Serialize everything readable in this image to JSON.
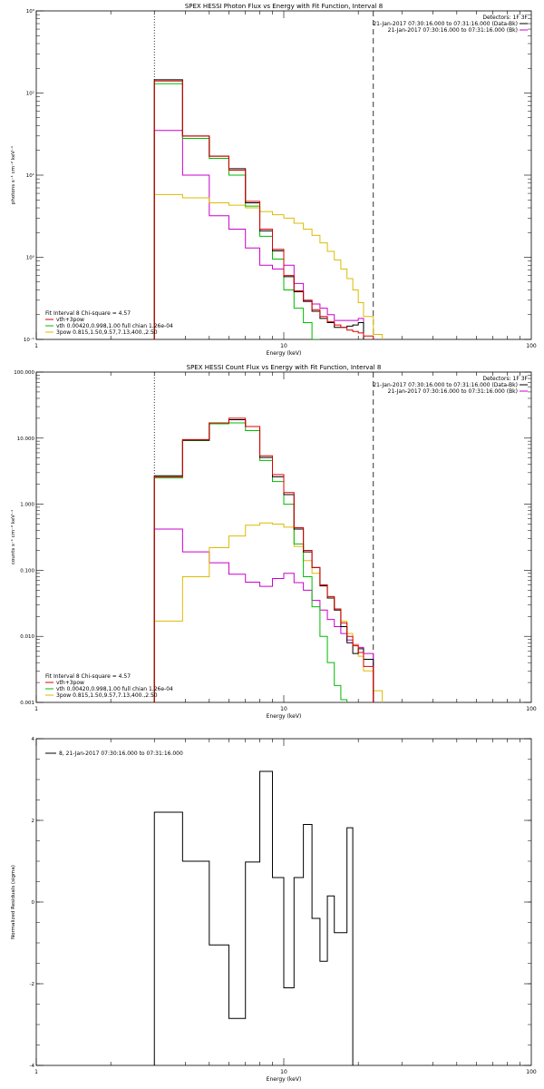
{
  "chart_data": [
    {
      "id": "photon",
      "type": "line",
      "style": "histogram",
      "title": "SPEX HESSI Photon Flux vs Energy with Fit Function, Interval 8",
      "xlabel": "Energy (keV)",
      "ylabel": "photons s⁻¹ cm⁻² keV⁻¹",
      "xscale": "log",
      "yscale": "log",
      "xlim": [
        1,
        100
      ],
      "ylim": [
        0.1,
        1000
      ],
      "x_ticks": [
        {
          "v": 1,
          "label": "1"
        },
        {
          "v": 10,
          "label": "10"
        },
        {
          "v": 100,
          "label": "100"
        }
      ],
      "y_ticks": [
        {
          "v": 0.1,
          "label": "10⁻¹"
        },
        {
          "v": 1,
          "label": "10⁰"
        },
        {
          "v": 10,
          "label": "10¹"
        },
        {
          "v": 100,
          "label": "10²"
        },
        {
          "v": 1000,
          "label": "10³"
        }
      ],
      "y_minor": true,
      "vlines": [
        {
          "x": 3.0,
          "style": "dotted"
        },
        {
          "x": 23.0,
          "style": "dashed"
        }
      ],
      "legend_top_right": {
        "header": "Detectors: 1F 3F",
        "items": [
          {
            "text": "21-Jan-2017 07:30:16.000 to 07:31:16.000 (Data-Bk)",
            "color": "#000000"
          },
          {
            "text": "21-Jan-2017 07:30:16.000 to 07:31:16.000 (Bk)",
            "color": "#cc00cc"
          }
        ]
      },
      "legend_bottom_left": {
        "header": "Fit Interval 8   Chi-square = 4.57",
        "items": [
          {
            "text": "vth+3pow",
            "color": "#dd0000"
          },
          {
            "text": "vth 0.00420,0.998,1.00  full chian 1.26e-04",
            "color": "#00bb00"
          },
          {
            "text": "3pow 0.815,1.50,9.57,7.13,400.,2.50",
            "color": "#ddbb00"
          }
        ]
      },
      "edges": [
        3.0,
        3.9,
        5.0,
        6.0,
        7.0,
        8.0,
        9.0,
        10.0,
        11.0,
        12.0,
        13.0,
        14.0,
        15.0,
        16.0,
        17.0,
        18.0,
        19.0,
        20.0,
        21.0,
        23.0,
        25.0
      ],
      "series": [
        {
          "key": "data",
          "color": "#000000",
          "values": [
            145,
            30,
            17,
            12,
            4.6,
            2.1,
            1.2,
            0.58,
            0.38,
            0.29,
            0.22,
            0.18,
            0.16,
            0.14,
            0.14,
            0.145,
            0.15,
            0.16
          ]
        },
        {
          "key": "fit",
          "color": "#dd0000",
          "values": [
            140,
            30,
            17,
            11.5,
            4.8,
            2.2,
            1.25,
            0.6,
            0.39,
            0.3,
            0.23,
            0.19,
            0.165,
            0.15,
            0.14,
            0.13,
            0.125,
            0.12,
            0.11
          ]
        },
        {
          "key": "vth",
          "color": "#00bb00",
          "values": [
            130,
            28,
            16,
            10,
            4.2,
            1.8,
            0.95,
            0.4,
            0.24,
            0.16,
            0.1
          ]
        },
        {
          "key": "pow",
          "color": "#ddbb00",
          "values": [
            5.8,
            5.3,
            4.6,
            4.3,
            4.0,
            3.6,
            3.3,
            3.0,
            2.6,
            2.2,
            1.85,
            1.5,
            1.18,
            0.93,
            0.72,
            0.55,
            0.4,
            0.28,
            0.19,
            0.115
          ]
        },
        {
          "key": "bk",
          "color": "#cc00cc",
          "values": [
            35,
            10,
            3.2,
            2.2,
            1.3,
            0.8,
            0.72,
            0.8,
            0.48,
            0.3,
            0.27,
            0.24,
            0.2,
            0.17,
            0.17,
            0.17,
            0.17,
            0.18
          ]
        }
      ]
    },
    {
      "id": "count",
      "type": "line",
      "style": "histogram",
      "title": "SPEX HESSI Count Flux vs Energy with Fit Function, Interval 8",
      "xlabel": "Energy (keV)",
      "ylabel": "counts s⁻¹ cm⁻² keV⁻¹",
      "xscale": "log",
      "yscale": "log",
      "xlim": [
        1,
        100
      ],
      "ylim": [
        0.001,
        100
      ],
      "x_ticks": [
        {
          "v": 1,
          "label": "1"
        },
        {
          "v": 10,
          "label": "10"
        },
        {
          "v": 100,
          "label": "100"
        }
      ],
      "y_ticks": [
        {
          "v": 0.001,
          "label": "0.001"
        },
        {
          "v": 0.01,
          "label": "0.010"
        },
        {
          "v": 0.1,
          "label": "0.100"
        },
        {
          "v": 1,
          "label": "1.000"
        },
        {
          "v": 10,
          "label": "10.000"
        },
        {
          "v": 100,
          "label": "100.000"
        }
      ],
      "y_minor": true,
      "vlines": [
        {
          "x": 3.0,
          "style": "dotted"
        },
        {
          "x": 23.0,
          "style": "dashed"
        }
      ],
      "legend_top_right": {
        "header": "Detectors: 1F 3F",
        "items": [
          {
            "text": "21-Jan-2017 07:30:16.000 to 07:31:16.000 (Data-Bk)",
            "color": "#000000"
          },
          {
            "text": "21-Jan-2017 07:30:16.000 to 07:31:16.000 (Bk)",
            "color": "#cc00cc"
          }
        ]
      },
      "legend_bottom_left": {
        "header": "Fit Interval 8   Chi-square = 4.57",
        "items": [
          {
            "text": "vth+3pow",
            "color": "#dd0000"
          },
          {
            "text": "vth 0.00420,0.998,1.00  full chian 1.26e-04",
            "color": "#00bb00"
          },
          {
            "text": "3pow 0.815,1.50,9.57,7.13,400.,2.50",
            "color": "#ddbb00"
          }
        ]
      },
      "edges": [
        3.0,
        3.9,
        5.0,
        6.0,
        7.0,
        8.0,
        9.0,
        10.0,
        11.0,
        12.0,
        13.0,
        14.0,
        15.0,
        16.0,
        17.0,
        18.0,
        19.0,
        20.0,
        21.0,
        23.0,
        25.0
      ],
      "series": [
        {
          "key": "data",
          "color": "#000000",
          "values": [
            2.7,
            9.3,
            17,
            19,
            15,
            5.1,
            2.6,
            1.4,
            0.42,
            0.19,
            0.11,
            0.058,
            0.038,
            0.025,
            0.014,
            0.008,
            0.0055,
            0.0065,
            0.0045
          ]
        },
        {
          "key": "fit",
          "color": "#dd0000",
          "values": [
            2.6,
            9.5,
            17,
            20,
            15,
            5.4,
            2.8,
            1.5,
            0.44,
            0.2,
            0.11,
            0.06,
            0.04,
            0.026,
            0.016,
            0.01,
            0.0072,
            0.0057,
            0.0035
          ]
        },
        {
          "key": "vth",
          "color": "#00bb00",
          "values": [
            2.5,
            9.2,
            16.5,
            17,
            13,
            4.6,
            2.2,
            1.0,
            0.25,
            0.08,
            0.028,
            0.01,
            0.004,
            0.0018,
            0.0011
          ]
        },
        {
          "key": "pow",
          "color": "#ddbb00",
          "values": [
            0.017,
            0.08,
            0.22,
            0.33,
            0.48,
            0.52,
            0.5,
            0.45,
            0.23,
            0.14,
            0.09,
            0.06,
            0.04,
            0.026,
            0.017,
            0.011,
            0.0074,
            0.005,
            0.003,
            0.0015
          ]
        },
        {
          "key": "bk",
          "color": "#cc00cc",
          "values": [
            0.42,
            0.19,
            0.13,
            0.087,
            0.066,
            0.057,
            0.075,
            0.09,
            0.065,
            0.05,
            0.035,
            0.025,
            0.018,
            0.014,
            0.011,
            0.0088,
            0.0075,
            0.0068,
            0.0055
          ]
        }
      ]
    },
    {
      "id": "resid",
      "type": "line",
      "style": "histogram",
      "title": "",
      "xlabel": "Energy (keV)",
      "ylabel": "Normalized Residuals (sigma)",
      "xscale": "log",
      "yscale": "linear",
      "xlim": [
        1,
        100
      ],
      "ylim": [
        -4,
        4
      ],
      "x_ticks": [
        {
          "v": 1,
          "label": "1"
        },
        {
          "v": 10,
          "label": "10"
        },
        {
          "v": 100,
          "label": "100"
        }
      ],
      "y_ticks": [
        {
          "v": -4,
          "label": "-4"
        },
        {
          "v": -2,
          "label": "-2"
        },
        {
          "v": 0,
          "label": "0"
        },
        {
          "v": 2,
          "label": "2"
        },
        {
          "v": 4,
          "label": "4"
        }
      ],
      "y_minor": false,
      "vlines": [],
      "legend_top_left": {
        "items": [
          {
            "text": "8, 21-Jan-2017 07:30:16.000 to 07:31:16.000",
            "color": "#000000"
          }
        ]
      },
      "edges": [
        3.0,
        3.9,
        5.0,
        6.0,
        7.0,
        8.0,
        9.0,
        10.0,
        11.0,
        12.0,
        13.0,
        14.0,
        15.0,
        16.0,
        18.0,
        19.0,
        20.0,
        21.5
      ],
      "drop_to": -4,
      "series": [
        {
          "key": "resid",
          "color": "#000000",
          "values": [
            2.2,
            1.0,
            -1.05,
            -2.85,
            0.98,
            3.2,
            0.6,
            -2.1,
            0.6,
            1.9,
            -0.4,
            -1.45,
            0.15,
            -0.75,
            1.82
          ]
        }
      ]
    }
  ]
}
